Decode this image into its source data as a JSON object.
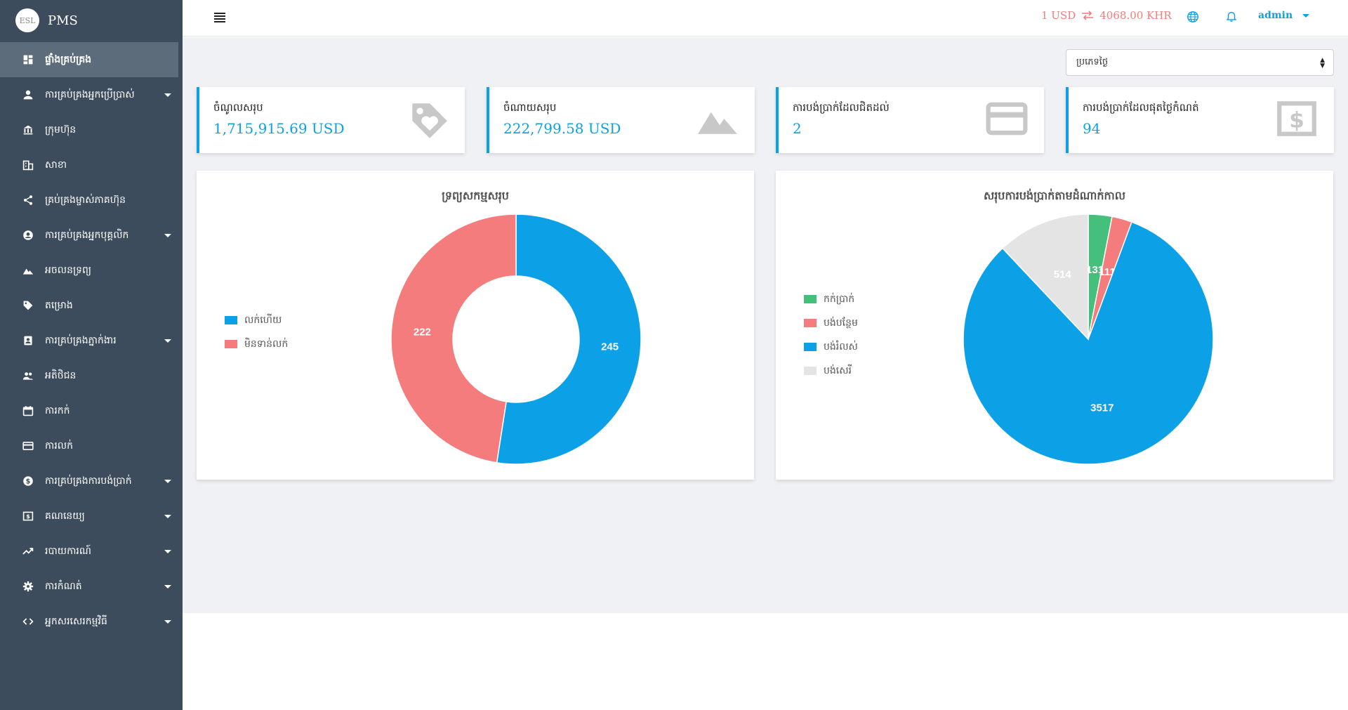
{
  "brand": {
    "name": "PMS",
    "logo_text": "ESL"
  },
  "sidebar": {
    "items": [
      {
        "label": "ផ្ទាំងគ្រប់គ្រង",
        "icon": "dashboard-icon",
        "has_caret": false,
        "active": true
      },
      {
        "label": "ការគ្រប់គ្រងអ្នកប្រើប្រាស់",
        "icon": "user-icon",
        "has_caret": true
      },
      {
        "label": "ក្រុមហ៊ុន",
        "icon": "bank-icon",
        "has_caret": false
      },
      {
        "label": "សាខា",
        "icon": "building-icon",
        "has_caret": false
      },
      {
        "label": "គ្រប់គ្រងម្ចាស់ភាគហ៊ុន",
        "icon": "share-icon",
        "has_caret": false
      },
      {
        "label": "ការគ្រប់គ្រងអ្នកបុគ្គលិក",
        "icon": "account-circle-icon",
        "has_caret": true
      },
      {
        "label": "អចលនទ្រព្យ",
        "icon": "landscape-icon",
        "has_caret": false
      },
      {
        "label": "តម្រោង",
        "icon": "tag-icon",
        "has_caret": false
      },
      {
        "label": "ការគ្រប់គ្រងភ្នាក់ងារ",
        "icon": "contact-icon",
        "has_caret": true
      },
      {
        "label": "អតិថិជន",
        "icon": "people-icon",
        "has_caret": false
      },
      {
        "label": "ការកក់",
        "icon": "calendar-icon",
        "has_caret": false
      },
      {
        "label": "ការលក់",
        "icon": "credit-card-icon",
        "has_caret": false
      },
      {
        "label": "ការគ្រប់គ្រងការបង់ប្រាក់",
        "icon": "dollar-circle-icon",
        "has_caret": true
      },
      {
        "label": "គណនេយ្យ",
        "icon": "money-icon",
        "has_caret": true
      },
      {
        "label": "របាយការណ៍",
        "icon": "trending-icon",
        "has_caret": true
      },
      {
        "label": "ការកំណត់",
        "icon": "gear-icon",
        "has_caret": true
      },
      {
        "label": "អ្នកសរសេរកម្មវិធី",
        "icon": "code-icon",
        "has_caret": true
      }
    ]
  },
  "topbar": {
    "rate_left": "1 USD",
    "rate_right": "4068.00 KHR",
    "user": "admin"
  },
  "filter": {
    "selected": "ប្រភេទថ្ងៃ"
  },
  "cards": [
    {
      "title": "ចំណូលសរុប",
      "value": "1,715,915.69 USD",
      "icon": "tag-heart-icon"
    },
    {
      "title": "ចំណាយសរុប",
      "value": "222,799.58 USD",
      "icon": "landscape-icon"
    },
    {
      "title": "ការបង់ប្រាក់ដែលជិតដល់",
      "value": "2",
      "icon": "credit-card-icon"
    },
    {
      "title": "ការបង់ប្រាក់ដែលផុតថ្ងៃកំណត់",
      "value": "94",
      "icon": "money-icon"
    }
  ],
  "colors": {
    "blue": "#0ca0e6",
    "red": "#f47c7c",
    "green": "#45c07c",
    "gray": "#e4e4e4"
  },
  "chart_data": [
    {
      "type": "pie",
      "title": "ទ្រព្យសកម្មសរុប",
      "variant": "doughnut",
      "legend_position": "left",
      "categories": [
        "លក់ហើយ",
        "មិនទាន់លក់"
      ],
      "values": [
        245,
        222
      ],
      "colors": [
        "#0ca0e6",
        "#f47c7c"
      ]
    },
    {
      "type": "pie",
      "title": "សរុបការបង់ប្រាក់តាមដំណាក់កាល",
      "legend_position": "left",
      "categories": [
        "កក់ប្រាក់",
        "បង់បន្ថែម",
        "បង់រំលស់",
        "បង់សេរី"
      ],
      "values": [
        131,
        111,
        3517,
        514
      ],
      "colors": [
        "#45c07c",
        "#f47c7c",
        "#0ca0e6",
        "#e4e4e4"
      ]
    }
  ]
}
